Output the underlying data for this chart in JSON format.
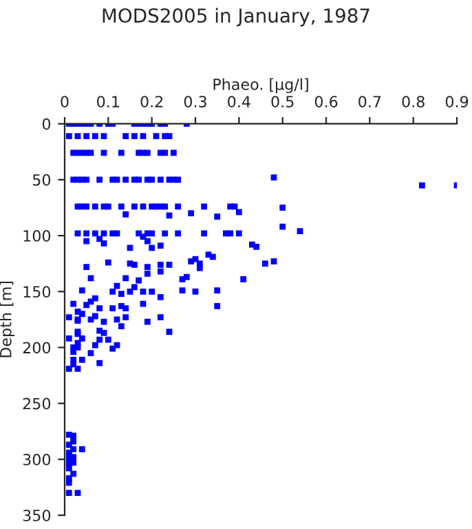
{
  "chart_data": {
    "type": "scatter",
    "title": "MODS2005 in January, 1987",
    "xlabel": "Phaeo. [µg/l]",
    "ylabel": "Depth [m]",
    "xlim": [
      0,
      0.9
    ],
    "xticks": [
      0,
      0.1,
      0.2,
      0.3,
      0.4,
      0.5,
      0.6,
      0.7,
      0.8,
      0.9
    ],
    "ylim": [
      350,
      0
    ],
    "yticks": [
      0,
      50,
      100,
      150,
      200,
      250,
      300,
      350
    ],
    "marker": "square",
    "grid": false,
    "legend": false,
    "series": [
      {
        "color": "#0000ff",
        "x": [
          0.01,
          0.02,
          0.03,
          0.04,
          0.05,
          0.06,
          0.08,
          0.1,
          0.11,
          0.16,
          0.17,
          0.18,
          0.19,
          0.2,
          0.22,
          0.23,
          0.28,
          0.01,
          0.03,
          0.05,
          0.07,
          0.09,
          0.14,
          0.16,
          0.18,
          0.21,
          0.23,
          0.24,
          0.02,
          0.03,
          0.04,
          0.05,
          0.06,
          0.09,
          0.13,
          0.17,
          0.18,
          0.19,
          0.22,
          0.23,
          0.25,
          0.02,
          0.03,
          0.04,
          0.05,
          0.08,
          0.11,
          0.12,
          0.14,
          0.16,
          0.17,
          0.19,
          0.2,
          0.22,
          0.24,
          0.25,
          0.26,
          0.48,
          0.82,
          0.9,
          0.03,
          0.04,
          0.05,
          0.07,
          0.09,
          0.1,
          0.13,
          0.16,
          0.18,
          0.2,
          0.21,
          0.22,
          0.23,
          0.26,
          0.32,
          0.38,
          0.39,
          0.14,
          0.24,
          0.29,
          0.35,
          0.4,
          0.03,
          0.05,
          0.07,
          0.09,
          0.11,
          0.12,
          0.17,
          0.19,
          0.2,
          0.23,
          0.26,
          0.32,
          0.37,
          0.38,
          0.4,
          0.5,
          0.5,
          0.54,
          0.43,
          0.05,
          0.08,
          0.09,
          0.18,
          0.19,
          0.22,
          0.44,
          0.15,
          0.2,
          0.1,
          0.05,
          0.15,
          0.16,
          0.19,
          0.22,
          0.24,
          0.29,
          0.3,
          0.31,
          0.33,
          0.34,
          0.31,
          0.46,
          0.48,
          0.22,
          0.19,
          0.06,
          0.14,
          0.17,
          0.27,
          0.28,
          0.41,
          0.12,
          0.16,
          0.04,
          0.11,
          0.13,
          0.15,
          0.18,
          0.2,
          0.22,
          0.27,
          0.3,
          0.35,
          0.35,
          0.07,
          0.06,
          0.05,
          0.02,
          0.08,
          0.11,
          0.13,
          0.14,
          0.18,
          0.03,
          0.04,
          0.07,
          0.01,
          0.14,
          0.22,
          0.03,
          0.03,
          0.06,
          0.09,
          0.12,
          0.19,
          0.13,
          0.24,
          0.08,
          0.09,
          0.03,
          0.03,
          0.04,
          0.08,
          0.1,
          0.01,
          0.03,
          0.07,
          0.12,
          0.11,
          0.02,
          0.03,
          0.02,
          0.06,
          0.02,
          0.04,
          0.02,
          0.08,
          0.01,
          0.03,
          0.01,
          0.02,
          0.02,
          0.01,
          0.02,
          0.04,
          0.01,
          0.01,
          0.02,
          0.01,
          0.02,
          0.01,
          0.01,
          0.02,
          0.01,
          0.01,
          0.01,
          0.03
        ],
        "values": [
          0,
          0,
          0,
          0,
          0,
          0,
          0,
          0,
          0,
          0,
          0,
          0,
          0,
          0,
          0,
          0,
          0,
          11,
          11,
          11,
          11,
          11,
          11,
          11,
          11,
          11,
          11,
          11,
          26,
          26,
          26,
          26,
          26,
          26,
          26,
          26,
          26,
          26,
          26,
          26,
          26,
          50,
          50,
          50,
          50,
          50,
          50,
          50,
          50,
          50,
          50,
          50,
          50,
          50,
          50,
          50,
          50,
          48,
          55,
          55,
          74,
          74,
          74,
          74,
          74,
          74,
          74,
          74,
          74,
          74,
          74,
          74,
          74,
          74,
          74,
          74,
          74,
          81,
          82,
          80,
          83,
          79,
          98,
          98,
          98,
          98,
          98,
          98,
          98,
          98,
          98,
          98,
          98,
          98,
          98,
          98,
          98,
          75,
          92,
          96,
          108,
          105,
          103,
          107,
          101,
          105,
          109,
          110,
          111,
          111,
          124,
          128,
          125,
          126,
          128,
          126,
          126,
          123,
          121,
          125,
          117,
          119,
          129,
          125,
          123,
          132,
          134,
          138,
          138,
          140,
          139,
          137,
          139,
          145,
          146,
          149,
          150,
          152,
          150,
          150,
          150,
          155,
          149,
          150,
          149,
          163,
          156,
          159,
          162,
          161,
          165,
          165,
          163,
          165,
          161,
          168,
          170,
          172,
          173,
          173,
          173,
          176,
          175,
          175,
          177,
          175,
          177,
          181,
          186,
          185,
          187,
          186,
          188,
          192,
          193,
          193,
          192,
          196,
          198,
          198,
          201,
          200,
          200,
          204,
          205,
          211,
          211,
          215,
          214,
          219,
          219,
          278,
          279,
          284,
          287,
          291,
          291,
          294,
          297,
          298,
          300,
          303,
          304,
          308,
          313,
          317,
          321,
          330,
          330
        ]
      }
    ]
  }
}
